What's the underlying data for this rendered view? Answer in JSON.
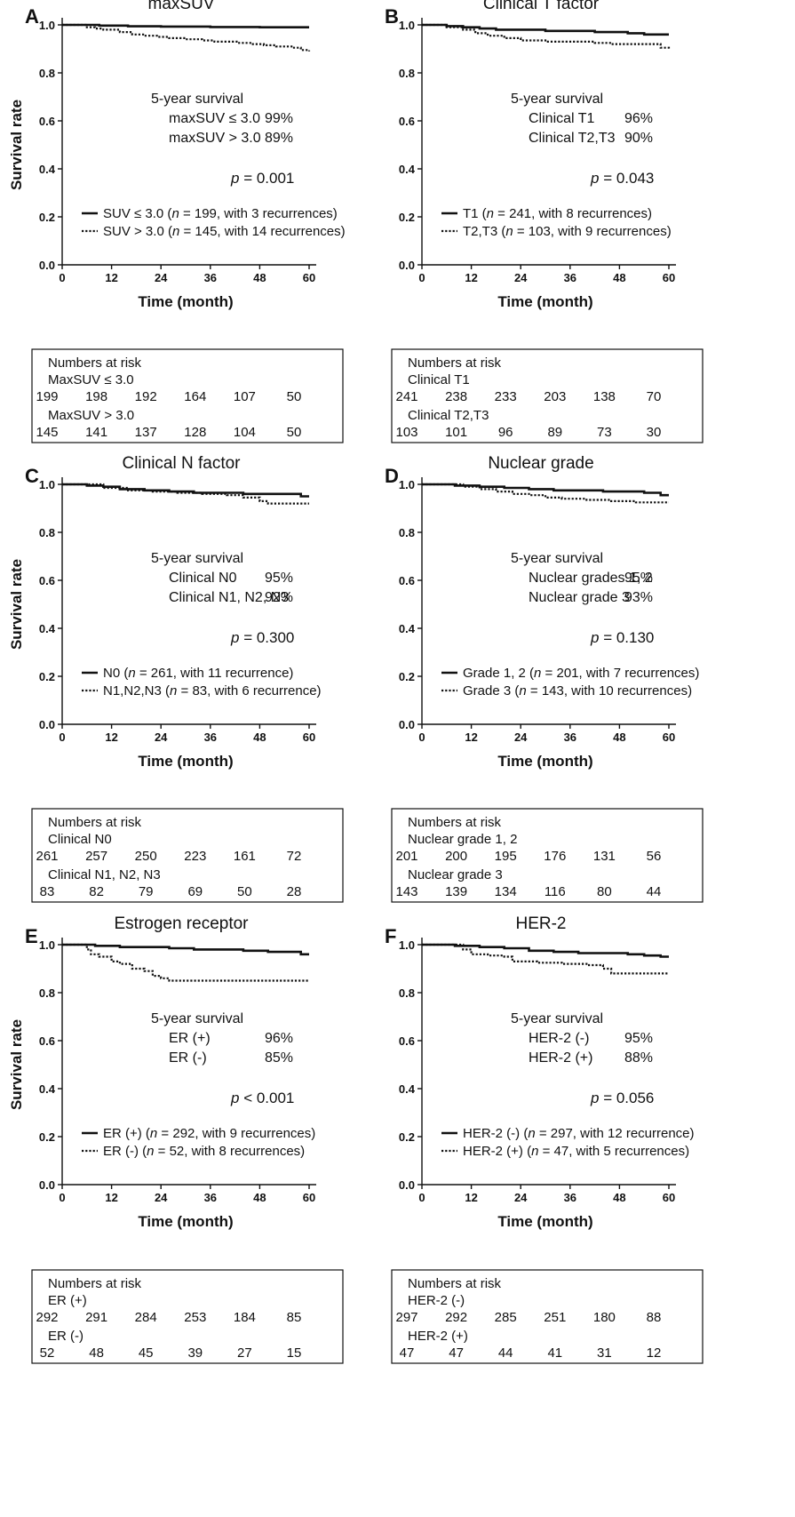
{
  "figure": {
    "ylabel": "Survival rate",
    "xlabel": "Time (month)",
    "risk_header": "Numbers at risk",
    "x_ticks": [
      "0",
      "12",
      "24",
      "36",
      "48",
      "60"
    ],
    "y_ticks": [
      "0.0",
      "0.2",
      "0.4",
      "0.6",
      "0.8",
      "1.0"
    ]
  },
  "chart_data": [
    {
      "type": "line",
      "panel": "A",
      "title": "maxSUV",
      "xlabel": "Time (month)",
      "ylabel": "Survival rate",
      "xlim": [
        0,
        60
      ],
      "ylim": [
        0,
        1.0
      ],
      "grid": false,
      "legend_position": "lower-left",
      "annotation_header": "5-year survival",
      "annotations": [
        {
          "label": "maxSUV ≤ 3.0",
          "value": "99%"
        },
        {
          "label": "maxSUV > 3.0",
          "value": "89%"
        }
      ],
      "p_prefix": "p",
      "p_value": " = 0.001",
      "series": [
        {
          "style": "solid",
          "legend_label": "SUV ≤ 3.0 (",
          "legend_n": " = 199, with 3 recurrences)",
          "x": [
            0,
            9,
            16,
            24,
            30,
            36,
            42,
            48,
            54,
            60
          ],
          "y": [
            1.0,
            0.997,
            0.994,
            0.993,
            0.993,
            0.991,
            0.991,
            0.99,
            0.99,
            0.99
          ]
        },
        {
          "style": "dotted",
          "legend_label": "SUV > 3.0 (",
          "legend_n": " = 145, with 14 recurrences)",
          "x": [
            0,
            4,
            6,
            8,
            10,
            14,
            17,
            20,
            23,
            26,
            30,
            34,
            37,
            40,
            43,
            46,
            49,
            52,
            54,
            56,
            58,
            60
          ],
          "y": [
            1.0,
            1.0,
            0.99,
            0.985,
            0.98,
            0.97,
            0.96,
            0.955,
            0.95,
            0.945,
            0.94,
            0.935,
            0.93,
            0.93,
            0.925,
            0.92,
            0.915,
            0.91,
            0.91,
            0.905,
            0.895,
            0.89
          ]
        }
      ],
      "risk_groups": [
        {
          "name": "MaxSUV ≤ 3.0",
          "values": [
            "199",
            "198",
            "192",
            "164",
            "107",
            "50"
          ]
        },
        {
          "name": "MaxSUV > 3.0",
          "values": [
            "145",
            "141",
            "137",
            "128",
            "104",
            "50"
          ]
        }
      ]
    },
    {
      "type": "line",
      "panel": "B",
      "title": "Clinical T factor",
      "xlabel": "Time (month)",
      "ylabel": "",
      "xlim": [
        0,
        60
      ],
      "ylim": [
        0,
        1.0
      ],
      "grid": false,
      "legend_position": "lower-left",
      "annotation_header": "5-year survival",
      "annotations": [
        {
          "label": "Clinical T1",
          "value": "96%"
        },
        {
          "label": "Clinical T2,T3",
          "value": "90%"
        }
      ],
      "p_prefix": "p",
      "p_value": " = 0.043",
      "series": [
        {
          "style": "solid",
          "legend_label": "T1 (",
          "legend_n": " = 241, with 8 recurrences)",
          "x": [
            0,
            6,
            10,
            14,
            18,
            24,
            30,
            36,
            42,
            46,
            50,
            54,
            60
          ],
          "y": [
            1.0,
            0.995,
            0.99,
            0.985,
            0.98,
            0.98,
            0.975,
            0.975,
            0.97,
            0.97,
            0.965,
            0.96,
            0.96
          ]
        },
        {
          "style": "dotted",
          "legend_label": "T2,T3 (",
          "legend_n": " = 103, with 9 recurrences)",
          "x": [
            0,
            6,
            10,
            13,
            16,
            20,
            24,
            30,
            36,
            42,
            46,
            50,
            56,
            58,
            60
          ],
          "y": [
            1.0,
            0.99,
            0.98,
            0.965,
            0.955,
            0.945,
            0.935,
            0.93,
            0.93,
            0.925,
            0.92,
            0.92,
            0.92,
            0.905,
            0.9
          ]
        }
      ],
      "risk_groups": [
        {
          "name": "Clinical T1",
          "values": [
            "241",
            "238",
            "233",
            "203",
            "138",
            "70"
          ]
        },
        {
          "name": "Clinical T2,T3",
          "values": [
            "103",
            "101",
            "96",
            "89",
            "73",
            "30"
          ]
        }
      ]
    },
    {
      "type": "line",
      "panel": "C",
      "title": "Clinical N factor",
      "xlabel": "Time (month)",
      "ylabel": "Survival rate",
      "xlim": [
        0,
        60
      ],
      "ylim": [
        0,
        1.0
      ],
      "grid": false,
      "legend_position": "lower-left",
      "annotation_header": "5-year survival",
      "annotations": [
        {
          "label": "Clinical N0",
          "value": "95%"
        },
        {
          "label": "Clinical N1, N2, N3",
          "value": "92%"
        }
      ],
      "p_prefix": "p",
      "p_value": " = 0.300",
      "series": [
        {
          "style": "solid",
          "legend_label": "N0 (",
          "legend_n": " = 261, with 11 recurrence)",
          "x": [
            0,
            6,
            10,
            14,
            20,
            26,
            32,
            38,
            44,
            50,
            54,
            58,
            60
          ],
          "y": [
            1.0,
            0.995,
            0.99,
            0.98,
            0.975,
            0.97,
            0.965,
            0.965,
            0.96,
            0.96,
            0.96,
            0.95,
            0.95
          ]
        },
        {
          "style": "dotted",
          "legend_label": "N1,N2,N3 (",
          "legend_n": " = 83, with 6 recurrence)",
          "x": [
            0,
            10,
            16,
            22,
            28,
            34,
            40,
            44,
            48,
            50,
            60
          ],
          "y": [
            1.0,
            0.985,
            0.975,
            0.97,
            0.965,
            0.96,
            0.955,
            0.945,
            0.93,
            0.92,
            0.92
          ]
        }
      ],
      "risk_groups": [
        {
          "name": "Clinical N0",
          "values": [
            "261",
            "257",
            "250",
            "223",
            "161",
            "72"
          ]
        },
        {
          "name": "Clinical N1, N2, N3",
          "values": [
            "83",
            "82",
            "79",
            "69",
            "50",
            "28"
          ]
        }
      ]
    },
    {
      "type": "line",
      "panel": "D",
      "title": "Nuclear grade",
      "xlabel": "Time (month)",
      "ylabel": "",
      "xlim": [
        0,
        60
      ],
      "ylim": [
        0,
        1.0
      ],
      "grid": false,
      "legend_position": "lower-left",
      "annotation_header": "5-year survival",
      "annotations": [
        {
          "label": "Nuclear grades 1, 2",
          "value": "95%"
        },
        {
          "label": "Nuclear grade 3",
          "value": "93%"
        }
      ],
      "p_prefix": "p",
      "p_value": " = 0.130",
      "series": [
        {
          "style": "solid",
          "legend_label": "Grade 1, 2 (",
          "legend_n": " = 201, with 7 recurrences)",
          "x": [
            0,
            8,
            14,
            20,
            26,
            32,
            38,
            44,
            50,
            54,
            58,
            60
          ],
          "y": [
            1.0,
            0.995,
            0.99,
            0.985,
            0.98,
            0.975,
            0.975,
            0.97,
            0.97,
            0.965,
            0.955,
            0.955
          ]
        },
        {
          "style": "dotted",
          "legend_label": "Grade    3 (",
          "legend_n": " = 143, with 10 recurrences)",
          "x": [
            0,
            10,
            14,
            18,
            22,
            26,
            30,
            34,
            40,
            46,
            52,
            60
          ],
          "y": [
            1.0,
            0.99,
            0.98,
            0.97,
            0.96,
            0.955,
            0.945,
            0.94,
            0.935,
            0.93,
            0.925,
            0.925
          ]
        }
      ],
      "risk_groups": [
        {
          "name": "Nuclear grade 1, 2",
          "values": [
            "201",
            "200",
            "195",
            "176",
            "131",
            "56"
          ]
        },
        {
          "name": "Nuclear grade    3",
          "values": [
            "143",
            "139",
            "134",
            "116",
            "80",
            "44"
          ]
        }
      ]
    },
    {
      "type": "line",
      "panel": "E",
      "title": "Estrogen receptor",
      "xlabel": "Time (month)",
      "ylabel": "Survival rate",
      "xlim": [
        0,
        60
      ],
      "ylim": [
        0,
        1.0
      ],
      "grid": false,
      "legend_position": "lower-left",
      "annotation_header": "5-year survival",
      "annotations": [
        {
          "label": "ER (+)",
          "value": "96%"
        },
        {
          "label": "ER (-)",
          "value": "85%"
        }
      ],
      "p_prefix": "p",
      "p_value": " < 0.001",
      "series": [
        {
          "style": "solid",
          "legend_label": "ER (+)  (",
          "legend_n": " = 292, with 9 recurrences)",
          "x": [
            0,
            8,
            14,
            20,
            26,
            32,
            38,
            44,
            50,
            54,
            58,
            60
          ],
          "y": [
            1.0,
            0.995,
            0.99,
            0.99,
            0.985,
            0.98,
            0.98,
            0.975,
            0.97,
            0.97,
            0.96,
            0.96
          ]
        },
        {
          "style": "dotted",
          "legend_label": "ER (-)   (",
          "legend_n": " = 52, with 8 recurrences)",
          "x": [
            0,
            6,
            7,
            9,
            12,
            14,
            17,
            20,
            22,
            24,
            26,
            60
          ],
          "y": [
            1.0,
            0.98,
            0.96,
            0.95,
            0.93,
            0.92,
            0.9,
            0.89,
            0.87,
            0.86,
            0.85,
            0.85
          ]
        }
      ],
      "risk_groups": [
        {
          "name": "ER (+)",
          "values": [
            "292",
            "291",
            "284",
            "253",
            "184",
            "85"
          ]
        },
        {
          "name": "ER (-)",
          "values": [
            "52",
            "48",
            "45",
            "39",
            "27",
            "15"
          ]
        }
      ]
    },
    {
      "type": "line",
      "panel": "F",
      "title": "HER-2",
      "xlabel": "Time (month)",
      "ylabel": "",
      "xlim": [
        0,
        60
      ],
      "ylim": [
        0,
        1.0
      ],
      "grid": false,
      "legend_position": "lower-left",
      "annotation_header": "5-year survival",
      "annotations": [
        {
          "label": "HER-2 (-)",
          "value": "95%"
        },
        {
          "label": "HER-2 (+)",
          "value": "88%"
        }
      ],
      "p_prefix": "p",
      "p_value": " = 0.056",
      "series": [
        {
          "style": "solid",
          "legend_label": "HER-2 (-)  (",
          "legend_n": " = 297, with 12 recurrence)",
          "x": [
            0,
            8,
            14,
            20,
            26,
            32,
            38,
            44,
            50,
            54,
            58,
            60
          ],
          "y": [
            1.0,
            0.995,
            0.99,
            0.985,
            0.975,
            0.97,
            0.965,
            0.965,
            0.96,
            0.955,
            0.95,
            0.95
          ]
        },
        {
          "style": "dotted",
          "legend_label": "HER-2 (+) (",
          "legend_n": " = 47, with 5 recurrences)",
          "x": [
            0,
            10,
            12,
            16,
            20,
            22,
            28,
            34,
            40,
            44,
            46,
            60
          ],
          "y": [
            1.0,
            0.98,
            0.96,
            0.955,
            0.95,
            0.93,
            0.925,
            0.92,
            0.915,
            0.9,
            0.88,
            0.88
          ]
        }
      ],
      "risk_groups": [
        {
          "name": "HER-2 (-)",
          "values": [
            "297",
            "292",
            "285",
            "251",
            "180",
            "88"
          ]
        },
        {
          "name": "HER-2 (+)",
          "values": [
            "47",
            "47",
            "44",
            "41",
            "31",
            "12"
          ]
        }
      ]
    }
  ]
}
